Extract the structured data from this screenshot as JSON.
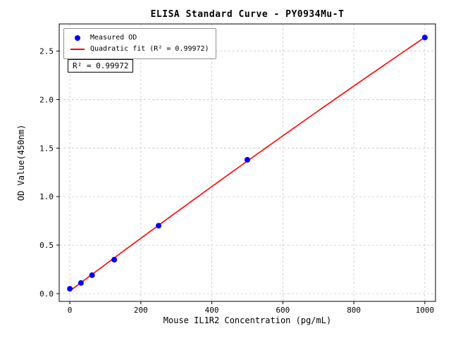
{
  "figure": {
    "title": "ELISA Standard Curve - PY0934Mu-T",
    "xlabel": "Mouse IL1R2 Concentration (pg/mL)",
    "ylabel": "OD Value(450nm)",
    "annotation": "R² = 0.99972",
    "legend": [
      {
        "label": "Measured OD"
      },
      {
        "label": "Quadratic fit (R² = 0.99972)"
      }
    ]
  },
  "chart_data": {
    "type": "scatter",
    "title": "ELISA Standard Curve - PY0934Mu-T",
    "xlabel": "Mouse IL1R2 Concentration (pg/mL)",
    "ylabel": "OD Value(450nm)",
    "xlim": [
      -30,
      1030
    ],
    "ylim": [
      -0.08,
      2.78
    ],
    "xticks": [
      0,
      200,
      400,
      600,
      800,
      1000
    ],
    "yticks": [
      0.0,
      0.5,
      1.0,
      1.5,
      2.0,
      2.5
    ],
    "grid": true,
    "legend_position": "upper-left",
    "r_squared": "0.99972",
    "series": [
      {
        "name": "Measured OD",
        "type": "scatter",
        "color": "#0000ff",
        "x": [
          0,
          31.25,
          62.5,
          125,
          250,
          500,
          1000
        ],
        "y": [
          0.05,
          0.11,
          0.19,
          0.35,
          0.7,
          1.38,
          2.64
        ]
      },
      {
        "name": "Quadratic fit (R² = 0.99972)",
        "type": "quadratic_fit_line",
        "color": "#ff0000",
        "x_range": [
          0,
          1000
        ]
      }
    ]
  }
}
